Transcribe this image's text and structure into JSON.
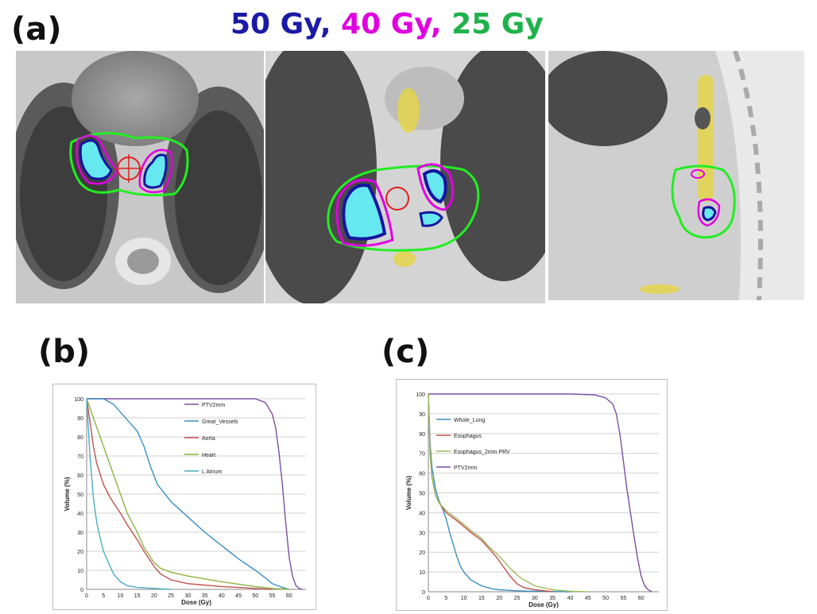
{
  "panel_a": {
    "label": "(a)",
    "dose_levels": [
      {
        "text": "50 Gy,",
        "color": "#1a1aa6"
      },
      {
        "text": "40 Gy,",
        "color": "#e000e0"
      },
      {
        "text": "25 Gy",
        "color": "#1fb24a"
      }
    ]
  },
  "panel_b": {
    "label": "(b)"
  },
  "panel_c": {
    "label": "(c)"
  },
  "chart_data": [
    {
      "type": "line",
      "xlabel": "Dose (Gy)",
      "ylabel": "Volume (%)",
      "xlim": [
        0,
        65
      ],
      "ylim": [
        0,
        100
      ],
      "xticks": [
        0,
        5,
        10,
        15,
        20,
        25,
        30,
        35,
        40,
        45,
        50,
        55,
        60
      ],
      "yticks": [
        0,
        10,
        20,
        30,
        40,
        50,
        60,
        70,
        80,
        90,
        100
      ],
      "grid": true,
      "legend_position": "top-right",
      "series": [
        {
          "name": "PTV2mm",
          "color": "#7a4fa0",
          "points": [
            [
              0,
              100
            ],
            [
              40,
              100
            ],
            [
              50,
              100
            ],
            [
              53,
              98
            ],
            [
              55,
              92
            ],
            [
              56,
              85
            ],
            [
              57,
              72
            ],
            [
              58,
              55
            ],
            [
              59,
              35
            ],
            [
              60,
              17
            ],
            [
              61,
              7
            ],
            [
              62,
              2
            ],
            [
              63,
              0.5
            ],
            [
              64,
              0
            ]
          ]
        },
        {
          "name": "Great_Vessels",
          "color": "#3a8fc0",
          "points": [
            [
              0,
              100
            ],
            [
              5,
              100
            ],
            [
              8,
              97
            ],
            [
              10,
              93
            ],
            [
              13,
              87
            ],
            [
              15,
              83
            ],
            [
              17,
              75
            ],
            [
              19,
              64
            ],
            [
              21,
              55
            ],
            [
              25,
              46
            ],
            [
              30,
              38
            ],
            [
              35,
              30
            ],
            [
              40,
              23
            ],
            [
              45,
              16
            ],
            [
              50,
              10
            ],
            [
              53,
              6
            ],
            [
              55,
              3
            ],
            [
              58,
              1
            ],
            [
              60,
              0
            ]
          ]
        },
        {
          "name": "Aorta",
          "color": "#c0504d",
          "points": [
            [
              0,
              100
            ],
            [
              1,
              88
            ],
            [
              2,
              75
            ],
            [
              3,
              66
            ],
            [
              5,
              55
            ],
            [
              7,
              48
            ],
            [
              10,
              40
            ],
            [
              12,
              34
            ],
            [
              15,
              26
            ],
            [
              17,
              20
            ],
            [
              20,
              12
            ],
            [
              22,
              8
            ],
            [
              25,
              5
            ],
            [
              30,
              3
            ],
            [
              40,
              1.5
            ],
            [
              50,
              0.5
            ],
            [
              55,
              0
            ]
          ]
        },
        {
          "name": "Heart",
          "color": "#8db33f",
          "points": [
            [
              0,
              100
            ],
            [
              2,
              90
            ],
            [
              4,
              80
            ],
            [
              6,
              70
            ],
            [
              8,
              60
            ],
            [
              10,
              50
            ],
            [
              12,
              40
            ],
            [
              15,
              30
            ],
            [
              17,
              22
            ],
            [
              20,
              14
            ],
            [
              22,
              11
            ],
            [
              25,
              9
            ],
            [
              30,
              7
            ],
            [
              40,
              4
            ],
            [
              50,
              1.5
            ],
            [
              55,
              0.5
            ],
            [
              60,
              0
            ]
          ]
        },
        {
          "name": "L Atrium",
          "color": "#4bacc6",
          "points": [
            [
              0,
              100
            ],
            [
              0.5,
              85
            ],
            [
              1,
              70
            ],
            [
              2,
              48
            ],
            [
              3,
              35
            ],
            [
              4,
              27
            ],
            [
              5,
              20
            ],
            [
              7,
              12
            ],
            [
              8,
              8
            ],
            [
              10,
              4
            ],
            [
              12,
              2
            ],
            [
              15,
              1
            ],
            [
              20,
              0.5
            ],
            [
              25,
              0
            ]
          ]
        }
      ]
    },
    {
      "type": "line",
      "xlabel": "Dose (Gy)",
      "ylabel": "Volume (%)",
      "xlim": [
        0,
        65
      ],
      "ylim": [
        0,
        100
      ],
      "xticks": [
        0,
        5,
        10,
        15,
        20,
        25,
        30,
        35,
        40,
        45,
        50,
        55,
        60
      ],
      "yticks": [
        0,
        10,
        20,
        30,
        40,
        50,
        60,
        70,
        80,
        90,
        100
      ],
      "grid": true,
      "legend_position": "top-left",
      "series": [
        {
          "name": "Whole_Lung",
          "color": "#3a8fc0",
          "points": [
            [
              0,
              100
            ],
            [
              0.5,
              75
            ],
            [
              1,
              63
            ],
            [
              2,
              52
            ],
            [
              3,
              46
            ],
            [
              4,
              42
            ],
            [
              5,
              37
            ],
            [
              6,
              30
            ],
            [
              7,
              24
            ],
            [
              8,
              18
            ],
            [
              9,
              13
            ],
            [
              10,
              10
            ],
            [
              12,
              6
            ],
            [
              15,
              3
            ],
            [
              18,
              1.5
            ],
            [
              20,
              1
            ],
            [
              25,
              0.5
            ],
            [
              30,
              0.2
            ],
            [
              40,
              0
            ]
          ]
        },
        {
          "name": "Esophagus",
          "color": "#c0504d",
          "points": [
            [
              0,
              100
            ],
            [
              0.5,
              70
            ],
            [
              1,
              58
            ],
            [
              2,
              49
            ],
            [
              3,
              45
            ],
            [
              5,
              40
            ],
            [
              8,
              36
            ],
            [
              10,
              33
            ],
            [
              12,
              30
            ],
            [
              15,
              26
            ],
            [
              17,
              22
            ],
            [
              19,
              18
            ],
            [
              21,
              13
            ],
            [
              23,
              8
            ],
            [
              25,
              4
            ],
            [
              27,
              2
            ],
            [
              30,
              1
            ],
            [
              35,
              0
            ]
          ]
        },
        {
          "name": "Esophagus_2mm PRV",
          "color": "#9bbb59",
          "points": [
            [
              0,
              100
            ],
            [
              0.5,
              70
            ],
            [
              1,
              58
            ],
            [
              2,
              49
            ],
            [
              3,
              45
            ],
            [
              5,
              41
            ],
            [
              8,
              37
            ],
            [
              10,
              34
            ],
            [
              12,
              31
            ],
            [
              15,
              27
            ],
            [
              17,
              23
            ],
            [
              20,
              18
            ],
            [
              23,
              12
            ],
            [
              26,
              7
            ],
            [
              30,
              3
            ],
            [
              35,
              1
            ],
            [
              40,
              0.3
            ],
            [
              45,
              0
            ]
          ]
        },
        {
          "name": "PTV2mm",
          "color": "#7a4fa0",
          "points": [
            [
              0,
              100
            ],
            [
              40,
              100
            ],
            [
              47,
              99.5
            ],
            [
              50,
              98
            ],
            [
              52,
              95
            ],
            [
              53,
              90
            ],
            [
              54,
              80
            ],
            [
              55,
              66
            ],
            [
              56,
              52
            ],
            [
              57,
              40
            ],
            [
              58,
              28
            ],
            [
              59,
              17
            ],
            [
              60,
              8
            ],
            [
              61,
              3
            ],
            [
              62,
              1
            ],
            [
              63,
              0
            ]
          ]
        }
      ]
    }
  ]
}
